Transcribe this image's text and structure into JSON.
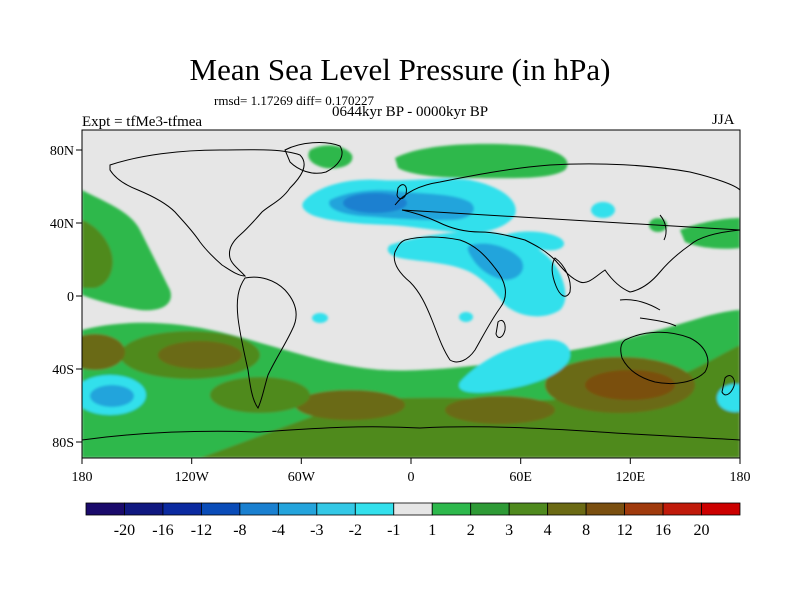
{
  "title": "Mean Sea Level Pressure (in hPa)",
  "stats": "rmsd= 1.17269 diff= 0.170227",
  "experiment": "Expt = tfMe3-tfmea",
  "period": "0644kyr BP - 0000kyr BP",
  "season": "JJA",
  "lat_labels": [
    "80N",
    "40N",
    "0",
    "40S",
    "80S"
  ],
  "lon_labels": [
    "180",
    "120W",
    "60W",
    "0",
    "60E",
    "120E",
    "180"
  ],
  "colorbar": {
    "labels": [
      "-20",
      "-16",
      "-12",
      "-8",
      "-4",
      "-3",
      "-2",
      "-1",
      "1",
      "2",
      "3",
      "4",
      "8",
      "12",
      "16",
      "20"
    ],
    "colors": [
      "#1a0a6b",
      "#101880",
      "#0b2aa0",
      "#0a4cb8",
      "#1a80d0",
      "#24a4dc",
      "#33c8e6",
      "#33e0ec",
      "#e6e6e6",
      "#2db84c",
      "#2e9a36",
      "#4f8a1e",
      "#6b6a14",
      "#7a4f10",
      "#a03a0c",
      "#c01a0a",
      "#cc0000"
    ]
  },
  "colors": {
    "land_outline": "#000000",
    "background_field": "#e6e6e6"
  }
}
